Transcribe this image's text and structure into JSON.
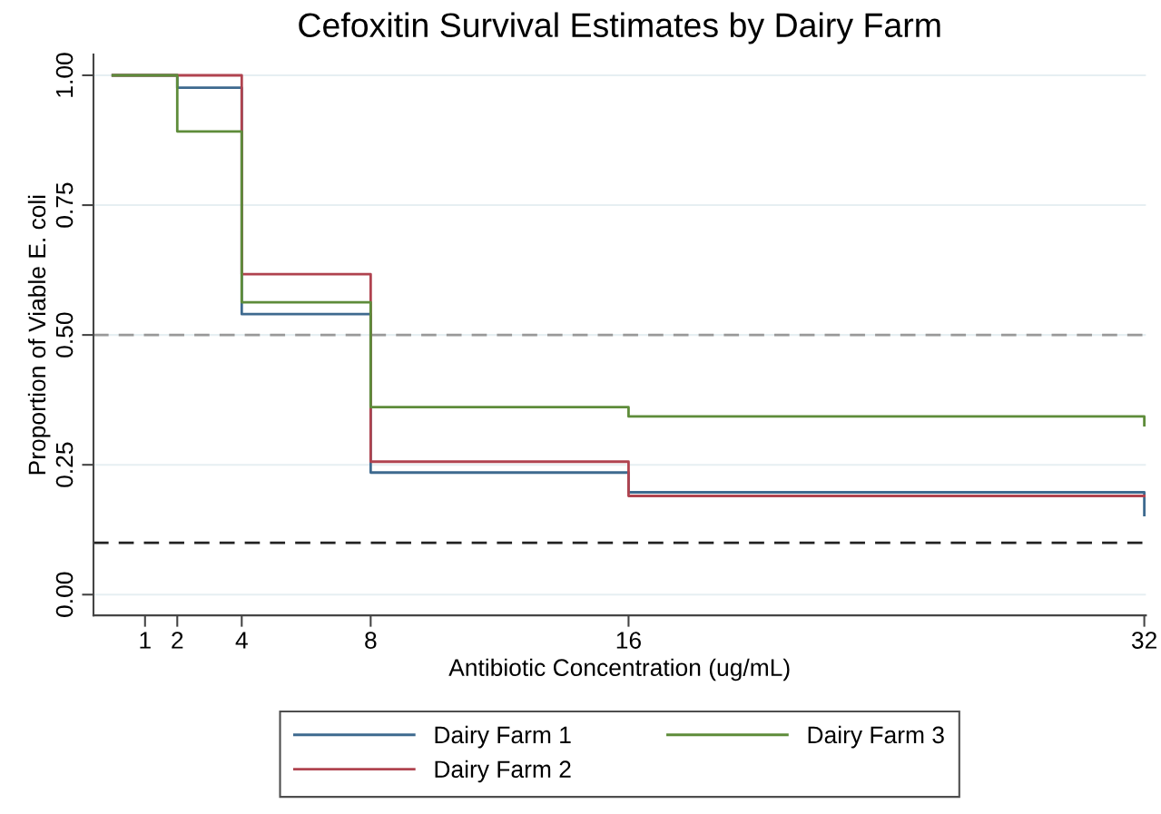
{
  "chart_data": {
    "type": "step",
    "title": "Cefoxitin Survival Estimates by Dairy Farm",
    "xlabel": "Antibiotic Concentration (ug/mL)",
    "ylabel": "Proportion of Viable E. coli",
    "xlim": [
      -0.6,
      32.05
    ],
    "xticks": [
      1,
      2,
      4,
      8,
      16,
      32
    ],
    "ylim": [
      -0.04,
      1.04
    ],
    "yticks": [
      {
        "value": 0,
        "label": "0.00"
      },
      {
        "value": 0.25,
        "label": "0.25"
      },
      {
        "value": 0.5,
        "label": "0.50"
      },
      {
        "value": 0.75,
        "label": "0.75"
      },
      {
        "value": 1,
        "label": "1.00"
      }
    ],
    "grid": "y",
    "legend": "bottom",
    "line_style": "solid",
    "series": [
      {
        "name": "Dairy Farm 1",
        "color": "#3e6a8f",
        "x": [
          0,
          2,
          4,
          8,
          16,
          32,
          32
        ],
        "values": [
          1.0,
          0.976,
          0.54,
          0.235,
          0.197,
          0.197,
          0.153
        ]
      },
      {
        "name": "Dairy Farm 2",
        "color": "#b0434f",
        "x": [
          0,
          2,
          4,
          8,
          16,
          32
        ],
        "values": [
          1.0,
          1.0,
          0.617,
          0.256,
          0.19,
          0.19
        ]
      },
      {
        "name": "Dairy Farm 3",
        "color": "#5e8c3a",
        "x": [
          0,
          2,
          4,
          8,
          16,
          32,
          32
        ],
        "values": [
          1.0,
          0.892,
          0.563,
          0.361,
          0.343,
          0.343,
          0.326
        ]
      }
    ],
    "ref_lines": [
      {
        "axis": "y",
        "value": 0.5,
        "color": "#999999",
        "line_style": "dashed"
      },
      {
        "axis": "y",
        "value": 0.1,
        "color": "#222222",
        "line_style": "dashed"
      }
    ]
  }
}
